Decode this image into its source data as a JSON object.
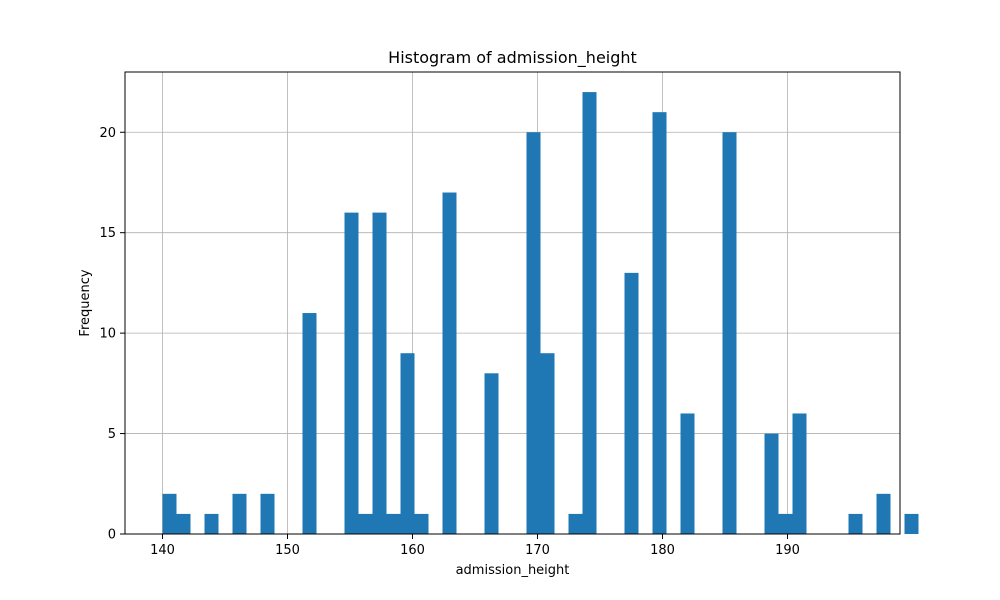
{
  "chart_data": {
    "type": "bar",
    "title": "Histogram of admission_height",
    "xlabel": "admission_height",
    "ylabel": "Frequency",
    "xlim": [
      137,
      199
    ],
    "ylim": [
      0,
      23
    ],
    "xticks": [
      140,
      150,
      160,
      170,
      180,
      190
    ],
    "yticks": [
      0,
      5,
      10,
      15,
      20
    ],
    "grid": true,
    "bin_start": 140,
    "bin_width": 1.12,
    "values": [
      2,
      1,
      0,
      1,
      0,
      2,
      0,
      2,
      0,
      0,
      11,
      0,
      0,
      16,
      1,
      16,
      1,
      9,
      1,
      0,
      17,
      0,
      0,
      8,
      0,
      0,
      20,
      9,
      0,
      1,
      22,
      0,
      0,
      13,
      0,
      21,
      0,
      6,
      0,
      0,
      20,
      0,
      0,
      5,
      1,
      6,
      0,
      0,
      0,
      1,
      0,
      2,
      0,
      1
    ]
  },
  "colors": {
    "bar": "#1f77b4",
    "grid": "#b0b0b0",
    "axis": "#000000"
  }
}
